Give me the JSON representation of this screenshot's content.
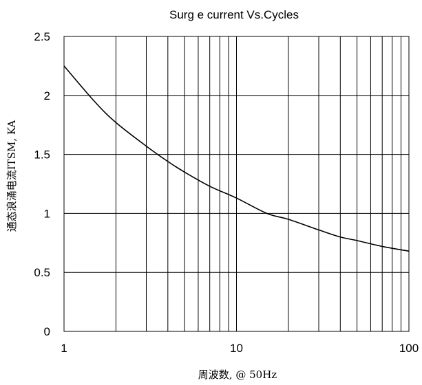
{
  "chart_data": {
    "type": "line",
    "title": "Surg e current Vs.Cycles",
    "xlabel": "周波数, @ 50Hz",
    "ylabel": "通态浪涌电流ITSM, KA",
    "x_scale": "log",
    "xlim": [
      1,
      100
    ],
    "ylim": [
      0,
      2.5
    ],
    "x_ticks": [
      1,
      10,
      100
    ],
    "x_tick_labels": [
      "1",
      "10",
      "100"
    ],
    "y_ticks": [
      0,
      0.5,
      1,
      1.5,
      2,
      2.5
    ],
    "y_tick_labels": [
      "0",
      "0.5",
      "1",
      "1.5",
      "2",
      "2.5"
    ],
    "grid": true,
    "series": [
      {
        "x": [
          1,
          1.5,
          2,
          3,
          4,
          5,
          7,
          10,
          15,
          20,
          30,
          40,
          50,
          70,
          100
        ],
        "y": [
          2.25,
          1.95,
          1.77,
          1.57,
          1.44,
          1.35,
          1.23,
          1.13,
          1.0,
          0.95,
          0.86,
          0.8,
          0.77,
          0.72,
          0.68
        ],
        "color": "#000000"
      }
    ]
  }
}
